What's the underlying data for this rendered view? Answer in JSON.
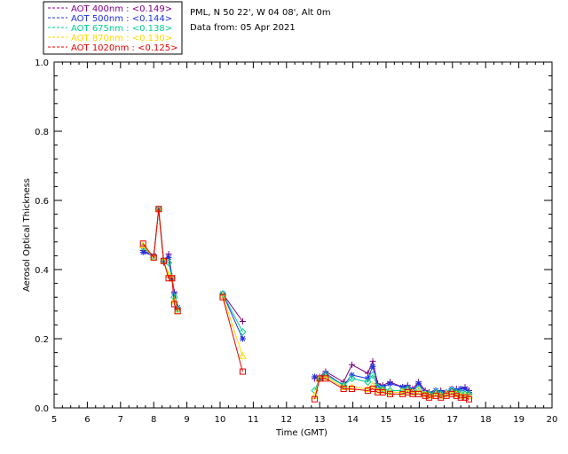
{
  "chart_data": {
    "type": "scatter",
    "title_lines": [
      "PML, N 50 22', W 04 08', Alt 0m",
      "Data from: 05 Apr 2021"
    ],
    "xlabel": "Time (GMT)",
    "ylabel": "Aerosol Optical Thickness",
    "xlim": [
      5,
      20
    ],
    "ylim": [
      0,
      1.0
    ],
    "xticks": [
      5,
      6,
      7,
      8,
      9,
      10,
      11,
      12,
      13,
      14,
      15,
      16,
      17,
      18,
      19,
      20
    ],
    "yticks": [
      "0.0",
      "0.2",
      "0.4",
      "0.6",
      "0.8",
      "1.0"
    ],
    "legend": [
      {
        "label": "AOT  400nm : <0.149>",
        "color": "#800080",
        "marker": "plus"
      },
      {
        "label": "AOT  500nm : <0.144>",
        "color": "#1e32e6",
        "marker": "star"
      },
      {
        "label": "AOT  675nm : <0.138>",
        "color": "#00d28c",
        "marker": "diamond"
      },
      {
        "label": "AOT  870nm : <0.130>",
        "color": "#ffd700",
        "marker": "triangle"
      },
      {
        "label": "AOT 1020nm : <0.125>",
        "color": "#e60000",
        "marker": "square"
      }
    ],
    "x": [
      7.68,
      8.0,
      8.15,
      8.3,
      8.45,
      8.55,
      8.62,
      8.72,
      10.08,
      10.68,
      12.85,
      13.0,
      13.18,
      13.72,
      13.97,
      14.45,
      14.6,
      14.75,
      14.9,
      15.12,
      15.5,
      15.65,
      15.8,
      15.98,
      16.18,
      16.3,
      16.5,
      16.65,
      16.82,
      16.98,
      17.12,
      17.25,
      17.38,
      17.5
    ],
    "series": [
      {
        "name": "AOT 400nm",
        "values": [
          0.455,
          0.44,
          0.57,
          0.42,
          0.445,
          0.38,
          0.335,
          0.29,
          0.33,
          0.25,
          0.085,
          0.09,
          0.105,
          0.075,
          0.125,
          0.1,
          0.135,
          0.07,
          0.065,
          0.075,
          0.06,
          0.065,
          0.055,
          0.075,
          0.05,
          0.045,
          0.05,
          0.05,
          0.045,
          0.055,
          0.055,
          0.055,
          0.06,
          0.05
        ]
      },
      {
        "name": "AOT 500nm",
        "values": [
          0.45,
          0.44,
          0.575,
          0.425,
          0.435,
          0.375,
          0.33,
          0.29,
          0.33,
          0.2,
          0.09,
          0.085,
          0.1,
          0.065,
          0.095,
          0.085,
          0.12,
          0.06,
          0.06,
          0.07,
          0.06,
          0.06,
          0.05,
          0.07,
          0.045,
          0.04,
          0.05,
          0.045,
          0.045,
          0.055,
          0.05,
          0.055,
          0.055,
          0.045
        ]
      },
      {
        "name": "AOT 675nm",
        "values": [
          0.465,
          0.435,
          0.575,
          0.425,
          0.42,
          0.375,
          0.32,
          0.285,
          0.33,
          0.22,
          0.05,
          0.085,
          0.095,
          0.065,
          0.085,
          0.075,
          0.095,
          0.06,
          0.055,
          0.05,
          0.05,
          0.055,
          0.045,
          0.055,
          0.04,
          0.04,
          0.045,
          0.04,
          0.04,
          0.05,
          0.045,
          0.045,
          0.04,
          0.04
        ]
      },
      {
        "name": "AOT 870nm",
        "values": [
          0.47,
          0.435,
          0.575,
          0.425,
          0.385,
          0.375,
          0.31,
          0.28,
          0.325,
          0.15,
          0.035,
          0.085,
          0.09,
          0.06,
          0.06,
          0.055,
          0.065,
          0.05,
          0.05,
          0.045,
          0.045,
          0.05,
          0.045,
          0.05,
          0.04,
          0.035,
          0.04,
          0.035,
          0.04,
          0.045,
          0.04,
          0.035,
          0.035,
          0.035
        ]
      },
      {
        "name": "AOT 1020nm",
        "values": [
          0.475,
          0.435,
          0.575,
          0.425,
          0.375,
          0.375,
          0.3,
          0.28,
          0.32,
          0.105,
          0.025,
          0.085,
          0.085,
          0.055,
          0.055,
          0.05,
          0.055,
          0.045,
          0.045,
          0.04,
          0.04,
          0.045,
          0.04,
          0.04,
          0.035,
          0.03,
          0.035,
          0.03,
          0.035,
          0.04,
          0.035,
          0.03,
          0.03,
          0.025
        ]
      }
    ]
  }
}
